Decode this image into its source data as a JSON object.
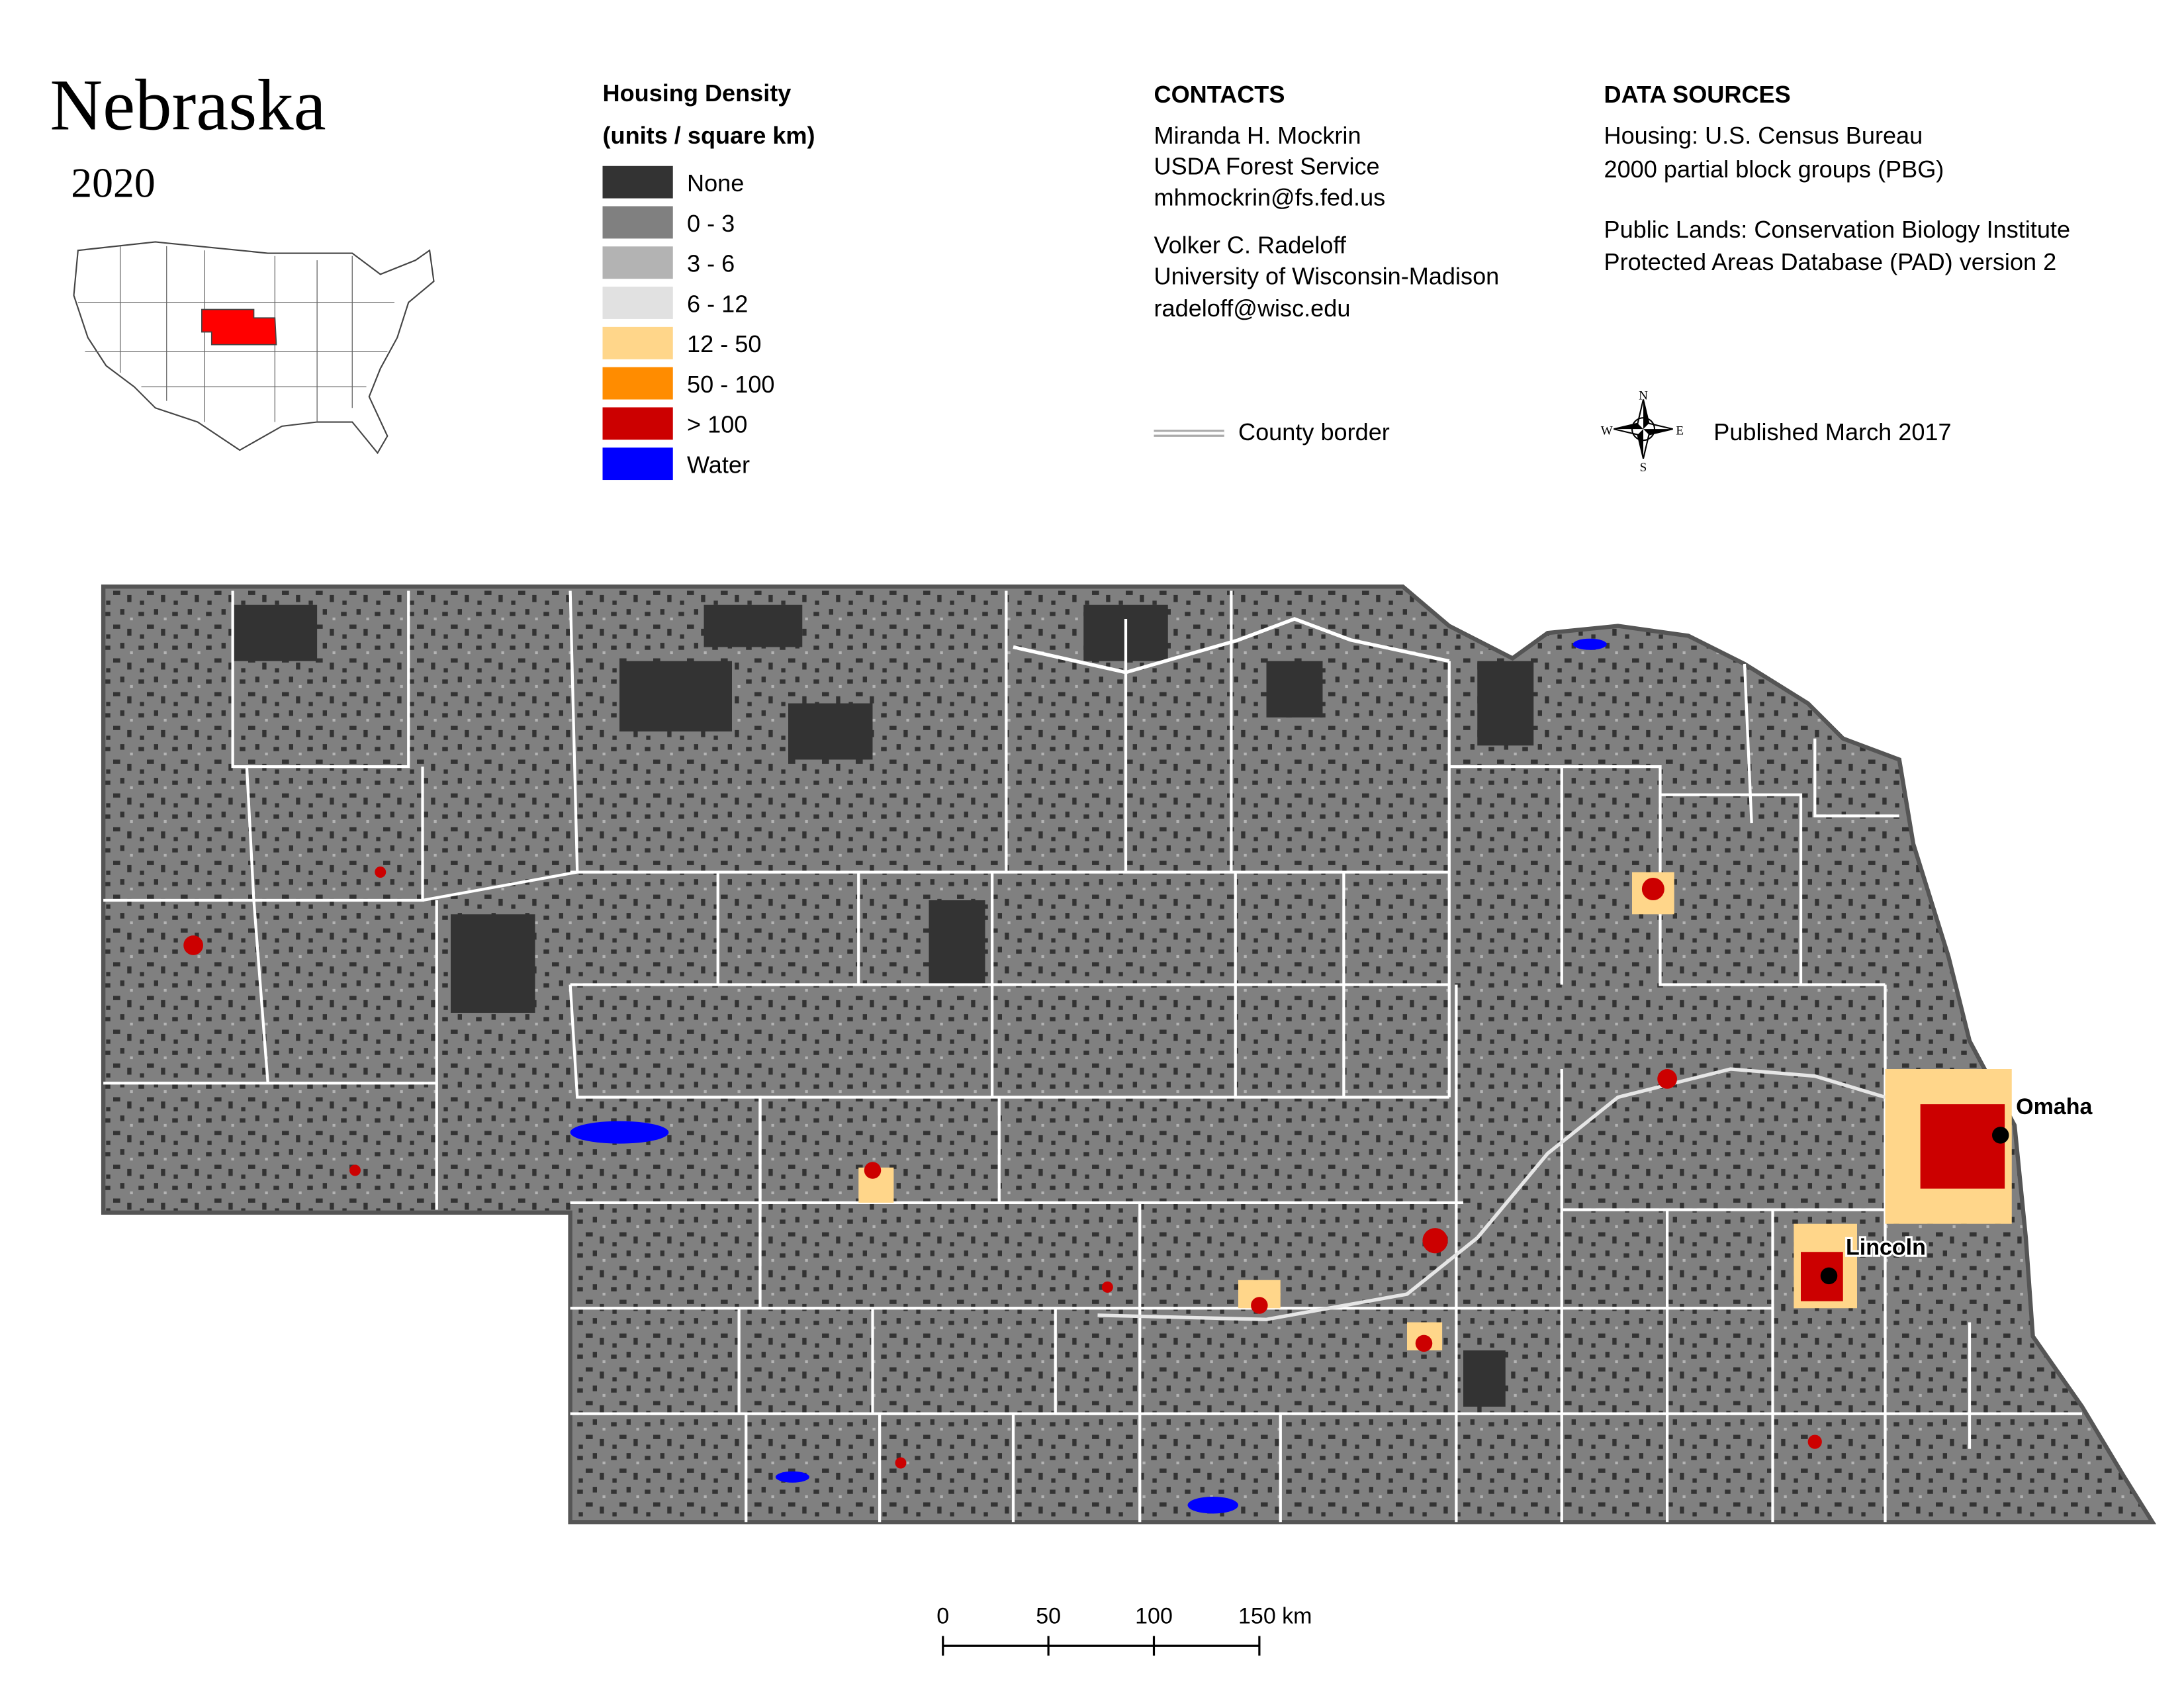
{
  "header": {
    "title": "Nebraska",
    "year": "2020"
  },
  "legend": {
    "title_lines": [
      "Housing Density",
      "(units / square km)"
    ],
    "items": [
      {
        "label": "None",
        "color": "#333333"
      },
      {
        "label": "0 - 3",
        "color": "#808080"
      },
      {
        "label": "3 - 6",
        "color": "#b3b3b3"
      },
      {
        "label": "6 - 12",
        "color": "#e1e1e1"
      },
      {
        "label": "12 - 50",
        "color": "#ffd68a"
      },
      {
        "label": "50 - 100",
        "color": "#ff8c00"
      },
      {
        "label": "> 100",
        "color": "#cc0000"
      },
      {
        "label": "Water",
        "color": "#0000ff"
      }
    ]
  },
  "contacts": {
    "heading": "CONTACTS",
    "people": [
      [
        "Miranda H. Mockrin",
        "USDA Forest Service",
        "mhmockrin@fs.fed.us"
      ],
      [
        "Volker C. Radeloff",
        "University of Wisconsin-Madison",
        "radeloff@wisc.edu"
      ]
    ]
  },
  "data_sources": {
    "heading": "DATA SOURCES",
    "lines": [
      "Housing: U.S. Census Bureau",
      "2000 partial block groups (PBG)",
      "Public Lands: Conservation Biology Institute",
      "Protected Areas Database (PAD) version 2"
    ]
  },
  "map": {
    "county_border_label": "County border",
    "published": "Published March 2017",
    "compass": {
      "n": "N",
      "e": "E",
      "s": "S",
      "w": "W"
    },
    "cities": [
      "Omaha",
      "Lincoln"
    ]
  },
  "scale_bar": {
    "labels": [
      "0",
      "50",
      "100",
      "150 km"
    ]
  }
}
